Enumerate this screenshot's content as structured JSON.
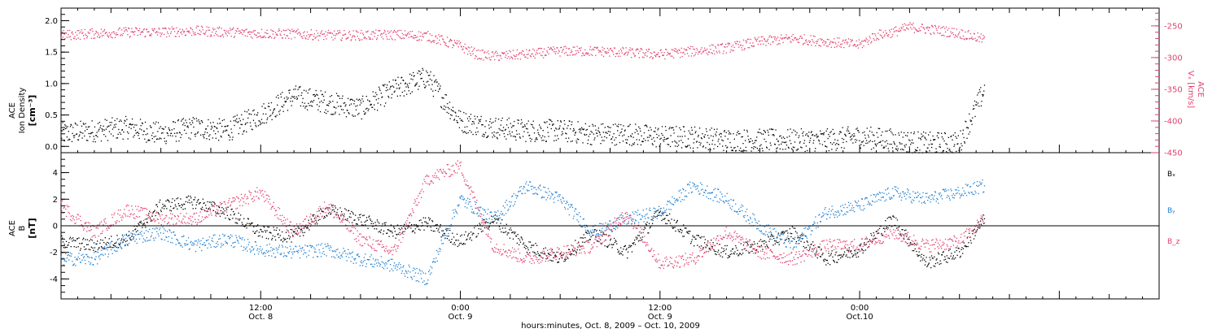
{
  "colors": {
    "bx": "#000000",
    "by": "#1f7fd0",
    "bz": "#e0406e",
    "vx": "#e0406e",
    "axis": "#000000"
  },
  "x_axis": {
    "title": "hours:minutes, Oct. 8, 2009 – Oct. 10, 2009",
    "range_hours": [
      0,
      66
    ],
    "major_ticks": [
      {
        "hour": 12,
        "time": "12:00",
        "date": "Oct. 8"
      },
      {
        "hour": 24,
        "time": "0:00",
        "date": "Oct. 9"
      },
      {
        "hour": 36,
        "time": "12:00",
        "date": "Oct. 9"
      },
      {
        "hour": 48,
        "time": "0:00",
        "date": "Oct.10"
      }
    ]
  },
  "chart_data": [
    {
      "type": "scatter",
      "panel": "top",
      "ylabel_lines": [
        "ACE",
        "Ion Density",
        "[cm⁻³]"
      ],
      "ylim": [
        -0.1,
        2.2
      ],
      "yticks": [
        0.0,
        0.5,
        1.0,
        1.5,
        2.0
      ],
      "ytick_labels": [
        "0.0",
        "0.5",
        "1.0",
        "1.5",
        "2.0"
      ],
      "y2label_lines": [
        "ACE",
        "Vₓ [km/s]"
      ],
      "y2lim": [
        -450,
        -222
      ],
      "y2ticks": [
        -250,
        -300,
        -350,
        -400,
        -450
      ],
      "y2tick_labels": [
        "-250",
        "-300",
        "-350",
        "-400",
        "-450"
      ],
      "series": [
        {
          "color_key": "bx",
          "axis": "left",
          "x": [
            0.0,
            2.0,
            4.0,
            6.0,
            8.0,
            10.0,
            12.0,
            14.0,
            16.0,
            18.0,
            20.0,
            22.0,
            24.0,
            26.0,
            28.0,
            30.0,
            32.0,
            34.0,
            36.0,
            38.0,
            40.0,
            42.0,
            44.0,
            46.0,
            48.0,
            50.0,
            52.0,
            54.0,
            55.5
          ],
          "y": [
            0.2,
            0.25,
            0.3,
            0.2,
            0.3,
            0.25,
            0.5,
            0.8,
            0.7,
            0.6,
            0.9,
            1.1,
            0.4,
            0.3,
            0.25,
            0.25,
            0.2,
            0.2,
            0.15,
            0.15,
            0.1,
            0.1,
            0.1,
            0.1,
            0.15,
            0.1,
            0.05,
            0.05,
            0.9
          ]
        },
        {
          "color_key": "vx",
          "axis": "right",
          "x": [
            0.0,
            2.0,
            4.0,
            6.0,
            8.0,
            10.0,
            12.0,
            14.0,
            16.0,
            18.0,
            20.0,
            22.0,
            24.0,
            25.0,
            26.0,
            28.0,
            30.0,
            32.0,
            34.0,
            36.0,
            38.0,
            40.0,
            42.0,
            44.0,
            46.0,
            48.0,
            49.0,
            50.0,
            51.0,
            52.0,
            53.0,
            54.0,
            55.0,
            55.5
          ],
          "y": [
            -265,
            -262,
            -260,
            -260,
            -258,
            -260,
            -262,
            -263,
            -265,
            -265,
            -264,
            -266,
            -282,
            -295,
            -298,
            -295,
            -290,
            -290,
            -292,
            -295,
            -290,
            -285,
            -275,
            -270,
            -275,
            -280,
            -265,
            -260,
            -252,
            -255,
            -258,
            -262,
            -268,
            -272
          ]
        }
      ]
    },
    {
      "type": "scatter",
      "panel": "bottom",
      "ylabel_lines": [
        "ACE",
        "B",
        "[nT]"
      ],
      "ylim": [
        -5.5,
        5.5
      ],
      "yticks": [
        -4,
        -2,
        0,
        2,
        4
      ],
      "ytick_labels": [
        "-4",
        "-2",
        "0",
        "2",
        "4"
      ],
      "zero_line": true,
      "series": [
        {
          "name": "Bₓ",
          "color_key": "bx",
          "x": [
            0.0,
            2.0,
            4.0,
            6.0,
            8.0,
            10.0,
            12.0,
            14.0,
            16.0,
            18.0,
            20.0,
            22.0,
            24.0,
            26.0,
            28.0,
            30.0,
            32.0,
            34.0,
            36.0,
            38.0,
            40.0,
            42.0,
            44.0,
            46.0,
            48.0,
            50.0,
            52.0,
            54.0,
            55.5
          ],
          "y": [
            -1.2,
            -1.5,
            -1.0,
            1.5,
            1.8,
            1.0,
            -0.5,
            -0.8,
            1.2,
            0.5,
            -0.5,
            0.2,
            -1.2,
            0.5,
            -1.5,
            -2.5,
            -0.5,
            -2.0,
            1.0,
            -1.0,
            -2.0,
            -1.5,
            -0.5,
            -2.5,
            -1.8,
            0.5,
            -2.8,
            -2.0,
            0.5
          ]
        },
        {
          "name": "Bᵧ",
          "color_key": "by",
          "x": [
            0.0,
            2.0,
            4.0,
            6.0,
            8.0,
            10.0,
            12.0,
            14.0,
            16.0,
            18.0,
            20.0,
            22.0,
            24.0,
            26.0,
            28.0,
            30.0,
            32.0,
            34.0,
            36.0,
            38.0,
            40.0,
            42.0,
            44.0,
            46.0,
            48.0,
            50.0,
            52.0,
            54.0,
            55.5
          ],
          "y": [
            -2.5,
            -2.5,
            -1.0,
            -0.5,
            -1.5,
            -1.0,
            -1.8,
            -2.0,
            -1.8,
            -2.5,
            -3.0,
            -4.0,
            2.0,
            0.5,
            3.0,
            2.0,
            -0.5,
            0.5,
            1.0,
            3.0,
            2.0,
            0.0,
            -1.5,
            1.0,
            1.5,
            2.5,
            2.0,
            2.5,
            3.0
          ]
        },
        {
          "name": "B_z",
          "color_key": "bz",
          "x": [
            0.0,
            2.0,
            4.0,
            6.0,
            8.0,
            10.0,
            12.0,
            14.0,
            16.0,
            18.0,
            20.0,
            22.0,
            24.0,
            26.0,
            28.0,
            30.0,
            32.0,
            34.0,
            36.0,
            38.0,
            40.0,
            42.0,
            44.0,
            46.0,
            48.0,
            50.0,
            52.0,
            54.0,
            55.5
          ],
          "y": [
            1.5,
            -0.5,
            1.2,
            0.5,
            0.5,
            1.5,
            2.5,
            -0.5,
            1.5,
            -1.0,
            -2.0,
            3.5,
            4.5,
            -1.5,
            -2.5,
            -2.0,
            -1.5,
            1.0,
            -2.8,
            -2.5,
            -0.5,
            -2.0,
            -2.5,
            -1.5,
            -1.5,
            -0.5,
            -1.5,
            -1.2,
            0.5
          ]
        }
      ]
    }
  ]
}
